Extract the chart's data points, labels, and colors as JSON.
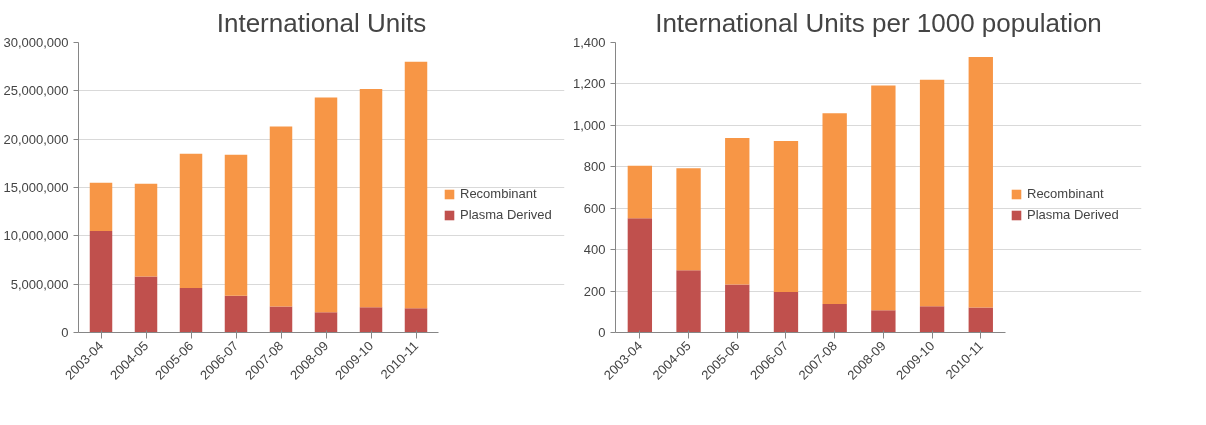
{
  "chart_data": [
    {
      "type": "bar",
      "title": "International Units",
      "stacked": true,
      "grid": "y",
      "legend": "right",
      "categories": [
        "2003-04",
        "2004-05",
        "2005-06",
        "2006-07",
        "2007-08",
        "2008-09",
        "2009-10",
        "2010-11"
      ],
      "series": [
        {
          "name": "Plasma Derived",
          "color": "#c0504d",
          "values": [
            10500000,
            5800000,
            4600000,
            3800000,
            2700000,
            2100000,
            2600000,
            2500000
          ]
        },
        {
          "name": "Recombinant",
          "color": "#f79646",
          "values": [
            5000000,
            9600000,
            13900000,
            14600000,
            18600000,
            22200000,
            22600000,
            25500000
          ]
        }
      ],
      "ylim": [
        0,
        30000000
      ],
      "yticks": [
        {
          "value": 0,
          "label": "0"
        },
        {
          "value": 5000000,
          "label": "5,000,000"
        },
        {
          "value": 10000000,
          "label": "10,000,000"
        },
        {
          "value": 15000000,
          "label": "15,000,000"
        },
        {
          "value": 20000000,
          "label": "20,000,000"
        },
        {
          "value": 25000000,
          "label": "25,000,000"
        },
        {
          "value": 30000000,
          "label": "30,000,000"
        }
      ]
    },
    {
      "type": "bar",
      "title": "International Units per 1000 population",
      "stacked": true,
      "grid": "y",
      "legend": "right",
      "categories": [
        "2003-04",
        "2004-05",
        "2005-06",
        "2006-07",
        "2007-08",
        "2008-09",
        "2009-10",
        "2010-11"
      ],
      "series": [
        {
          "name": "Plasma Derived",
          "color": "#c0504d",
          "values": [
            552,
            300,
            232,
            196,
            138,
            107,
            127,
            121
          ]
        },
        {
          "name": "Recombinant",
          "color": "#f79646",
          "values": [
            253,
            493,
            707,
            729,
            921,
            1086,
            1093,
            1209
          ]
        }
      ],
      "ylim": [
        0,
        1400
      ],
      "yticks": [
        0,
        200,
        400,
        600,
        800,
        {
          "value": 1000,
          "label": "1,000"
        },
        {
          "value": 1200,
          "label": "1,200"
        },
        {
          "value": 1400,
          "label": "1,400"
        }
      ]
    }
  ]
}
